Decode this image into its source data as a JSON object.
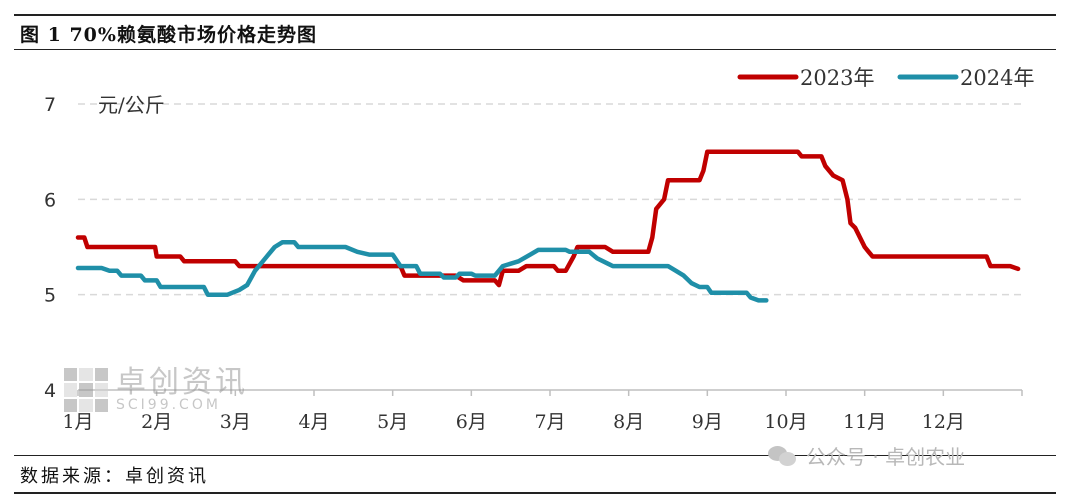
{
  "header": {
    "title": "图 1  70%赖氨酸市场价格走势图"
  },
  "footer": {
    "source": "数据来源：卓创资讯"
  },
  "watermark": {
    "name": "卓创资讯",
    "site": "SCI99.COM"
  },
  "wechat": {
    "label": "公众号 · 卓创农业"
  },
  "chart_data": {
    "type": "line",
    "title": "",
    "ylabel": "元/公斤",
    "ylim": [
      4,
      7
    ],
    "yticks": [
      4,
      5,
      6,
      7
    ],
    "xlim": [
      1,
      13
    ],
    "xticks": [
      {
        "x": 1,
        "label": "1月"
      },
      {
        "x": 2,
        "label": "2月"
      },
      {
        "x": 3,
        "label": "3月"
      },
      {
        "x": 4,
        "label": "4月"
      },
      {
        "x": 5,
        "label": "5月"
      },
      {
        "x": 6,
        "label": "6月"
      },
      {
        "x": 7,
        "label": "7月"
      },
      {
        "x": 8,
        "label": "8月"
      },
      {
        "x": 9,
        "label": "9月"
      },
      {
        "x": 10,
        "label": "10月"
      },
      {
        "x": 11,
        "label": "11月"
      },
      {
        "x": 12,
        "label": "12月"
      }
    ],
    "grid": true,
    "legend_position": "top-right",
    "series": [
      {
        "name": "2023年",
        "color": "#c00000",
        "points": [
          [
            1.0,
            5.6
          ],
          [
            1.08,
            5.6
          ],
          [
            1.12,
            5.5
          ],
          [
            1.98,
            5.5
          ],
          [
            2.0,
            5.4
          ],
          [
            2.3,
            5.4
          ],
          [
            2.35,
            5.35
          ],
          [
            3.0,
            5.35
          ],
          [
            3.05,
            5.3
          ],
          [
            5.1,
            5.3
          ],
          [
            5.15,
            5.2
          ],
          [
            5.8,
            5.2
          ],
          [
            5.9,
            5.15
          ],
          [
            6.3,
            5.15
          ],
          [
            6.35,
            5.1
          ],
          [
            6.4,
            5.25
          ],
          [
            6.6,
            5.25
          ],
          [
            6.7,
            5.3
          ],
          [
            7.05,
            5.3
          ],
          [
            7.1,
            5.25
          ],
          [
            7.2,
            5.25
          ],
          [
            7.3,
            5.4
          ],
          [
            7.35,
            5.5
          ],
          [
            7.7,
            5.5
          ],
          [
            7.8,
            5.45
          ],
          [
            8.25,
            5.45
          ],
          [
            8.3,
            5.6
          ],
          [
            8.35,
            5.9
          ],
          [
            8.45,
            6.0
          ],
          [
            8.5,
            6.2
          ],
          [
            8.9,
            6.2
          ],
          [
            8.95,
            6.3
          ],
          [
            9.0,
            6.5
          ],
          [
            10.15,
            6.5
          ],
          [
            10.2,
            6.45
          ],
          [
            10.45,
            6.45
          ],
          [
            10.5,
            6.35
          ],
          [
            10.6,
            6.25
          ],
          [
            10.72,
            6.2
          ],
          [
            10.78,
            6.0
          ],
          [
            10.82,
            5.75
          ],
          [
            10.88,
            5.7
          ],
          [
            11.0,
            5.5
          ],
          [
            11.05,
            5.45
          ],
          [
            11.1,
            5.4
          ],
          [
            12.55,
            5.4
          ],
          [
            12.6,
            5.3
          ],
          [
            12.85,
            5.3
          ],
          [
            12.95,
            5.27
          ]
        ]
      },
      {
        "name": "2024年",
        "color": "#1f8fa8",
        "points": [
          [
            1.0,
            5.28
          ],
          [
            1.3,
            5.28
          ],
          [
            1.4,
            5.25
          ],
          [
            1.5,
            5.25
          ],
          [
            1.55,
            5.2
          ],
          [
            1.8,
            5.2
          ],
          [
            1.85,
            5.15
          ],
          [
            2.0,
            5.15
          ],
          [
            2.05,
            5.08
          ],
          [
            2.6,
            5.08
          ],
          [
            2.65,
            5.0
          ],
          [
            2.9,
            5.0
          ],
          [
            3.05,
            5.05
          ],
          [
            3.15,
            5.1
          ],
          [
            3.25,
            5.25
          ],
          [
            3.4,
            5.4
          ],
          [
            3.5,
            5.5
          ],
          [
            3.6,
            5.55
          ],
          [
            3.75,
            5.55
          ],
          [
            3.8,
            5.5
          ],
          [
            4.4,
            5.5
          ],
          [
            4.55,
            5.45
          ],
          [
            4.7,
            5.42
          ],
          [
            5.0,
            5.42
          ],
          [
            5.1,
            5.3
          ],
          [
            5.3,
            5.3
          ],
          [
            5.35,
            5.22
          ],
          [
            5.6,
            5.22
          ],
          [
            5.65,
            5.18
          ],
          [
            5.8,
            5.18
          ],
          [
            5.85,
            5.22
          ],
          [
            6.0,
            5.22
          ],
          [
            6.05,
            5.2
          ],
          [
            6.3,
            5.2
          ],
          [
            6.4,
            5.3
          ],
          [
            6.6,
            5.35
          ],
          [
            6.75,
            5.42
          ],
          [
            6.85,
            5.47
          ],
          [
            7.2,
            5.47
          ],
          [
            7.25,
            5.45
          ],
          [
            7.5,
            5.45
          ],
          [
            7.6,
            5.38
          ],
          [
            7.75,
            5.32
          ],
          [
            7.8,
            5.3
          ],
          [
            8.5,
            5.3
          ],
          [
            8.6,
            5.25
          ],
          [
            8.7,
            5.2
          ],
          [
            8.8,
            5.12
          ],
          [
            8.9,
            5.08
          ],
          [
            9.0,
            5.08
          ],
          [
            9.05,
            5.02
          ],
          [
            9.5,
            5.02
          ],
          [
            9.55,
            4.97
          ],
          [
            9.65,
            4.94
          ],
          [
            9.75,
            4.94
          ]
        ]
      }
    ]
  }
}
